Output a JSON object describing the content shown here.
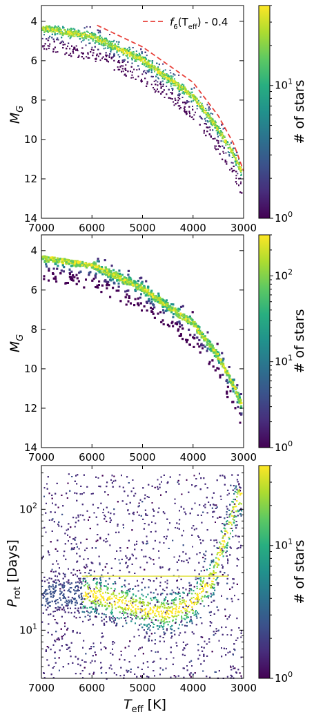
{
  "chart_data": [
    {
      "type": "heatmap",
      "title": "",
      "xlabel": "",
      "ylabel": "M_G",
      "xlim": [
        7000,
        3000
      ],
      "ylim": [
        14,
        3.2
      ],
      "x_ticks": [
        "7000",
        "6000",
        "5000",
        "4000",
        "3000"
      ],
      "y_ticks": [
        "4",
        "6",
        "8",
        "10",
        "12",
        "14"
      ],
      "y_tick_values": [
        4,
        6,
        8,
        10,
        12,
        14
      ],
      "colorbar": {
        "label": "# of stars",
        "scale": "log",
        "range": [
          1,
          40
        ],
        "ticks": [
          {
            "base": "10",
            "exp": "0",
            "value": 1
          },
          {
            "base": "10",
            "exp": "1",
            "value": 10
          }
        ]
      },
      "legend": {
        "position": "top-right",
        "entry": {
          "f": "f",
          "sub": "6",
          "open": "(T",
          "eff": "eff",
          "close": ") - 0.4"
        },
        "color": "#e8403a",
        "style": "dashed"
      },
      "main_sequence": [
        [
          7000,
          4.3
        ],
        [
          6000,
          4.75
        ],
        [
          5000,
          5.95
        ],
        [
          4000,
          7.8
        ],
        [
          3500,
          9.5
        ],
        [
          3200,
          10.8
        ],
        [
          3000,
          11.9
        ]
      ],
      "curve": [
        [
          5900,
          4.2
        ],
        [
          5000,
          5.3
        ],
        [
          4000,
          7.1
        ],
        [
          3500,
          8.8
        ],
        [
          3200,
          10.2
        ],
        [
          3000,
          11.6
        ]
      ],
      "cutoff": 4.2
    },
    {
      "type": "heatmap",
      "title": "",
      "xlabel": "",
      "ylabel": "M_G",
      "xlim": [
        7000,
        3000
      ],
      "ylim": [
        14,
        3.2
      ],
      "x_ticks": [
        "7000",
        "6000",
        "5000",
        "4000",
        "3000"
      ],
      "y_ticks": [
        "4",
        "6",
        "8",
        "10",
        "12",
        "14"
      ],
      "y_tick_values": [
        4,
        6,
        8,
        10,
        12,
        14
      ],
      "colorbar": {
        "label": "# of stars",
        "scale": "log",
        "range": [
          1,
          300
        ],
        "ticks": [
          {
            "base": "10",
            "exp": "0",
            "value": 1
          },
          {
            "base": "10",
            "exp": "1",
            "value": 10
          },
          {
            "base": "10",
            "exp": "2",
            "value": 100
          }
        ]
      },
      "main_sequence": [
        [
          7000,
          4.3
        ],
        [
          6000,
          4.7
        ],
        [
          5000,
          5.9
        ],
        [
          4000,
          7.7
        ],
        [
          3500,
          9.4
        ],
        [
          3200,
          10.9
        ],
        [
          3000,
          12.2
        ]
      ],
      "cutoff": 4.2
    },
    {
      "type": "heatmap",
      "title": "",
      "xlabel": "T_eff [K]",
      "ylabel": "P_rot [Days]",
      "xlim": [
        7000,
        3000
      ],
      "ylim": [
        4,
        230
      ],
      "yscale": "log",
      "x_ticks": [
        "7000",
        "6000",
        "5000",
        "4000",
        "3000"
      ],
      "y_ticks": [
        {
          "base": "10",
          "exp": "1",
          "value": 10
        },
        {
          "base": "10",
          "exp": "2",
          "value": 100
        }
      ],
      "colorbar": {
        "label": "# of stars",
        "scale": "log",
        "range": [
          1,
          40
        ],
        "ticks": [
          {
            "base": "10",
            "exp": "0",
            "value": 1
          },
          {
            "base": "10",
            "exp": "1",
            "value": 10
          }
        ]
      },
      "period_range": [
        4,
        200
      ],
      "ridge": [
        [
          6000,
          20
        ],
        [
          5000,
          15
        ],
        [
          4500,
          14
        ],
        [
          4000,
          17
        ],
        [
          3600,
          28
        ],
        [
          3300,
          70
        ],
        [
          3100,
          130
        ]
      ],
      "horizontal_line": 28
    }
  ]
}
